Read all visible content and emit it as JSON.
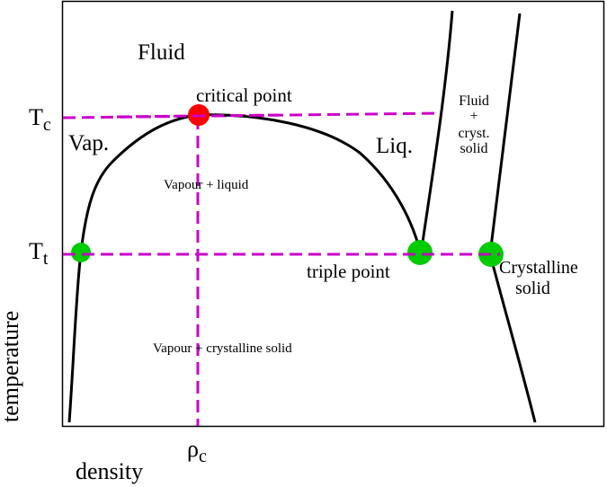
{
  "colors": {
    "guide_lines": "#cc00cc",
    "critical_point": "#ff0000",
    "triple_points": "#00cc00",
    "curves": "#000000"
  },
  "labels": {
    "fluid": "Fluid",
    "critical_point": "critical point",
    "vap": "Vap.",
    "liq": "Liq.",
    "vapour_liquid": "Vapour + liquid",
    "triple_point": "triple point",
    "vapour_solid": "Vapour + crystalline solid",
    "fluid_solid_1": "Fluid",
    "fluid_solid_2": "+",
    "fluid_solid_3": "cryst.",
    "fluid_solid_4": "solid",
    "crystalline_1": "Crystalline",
    "crystalline_2": "solid"
  },
  "axes": {
    "x_label": "density",
    "y_label": "temperature",
    "tc_main": "T",
    "tc_sub": "c",
    "tt_main": "T",
    "tt_sub": "t",
    "rhoc_main": "ρ",
    "rhoc_sub": "c"
  }
}
